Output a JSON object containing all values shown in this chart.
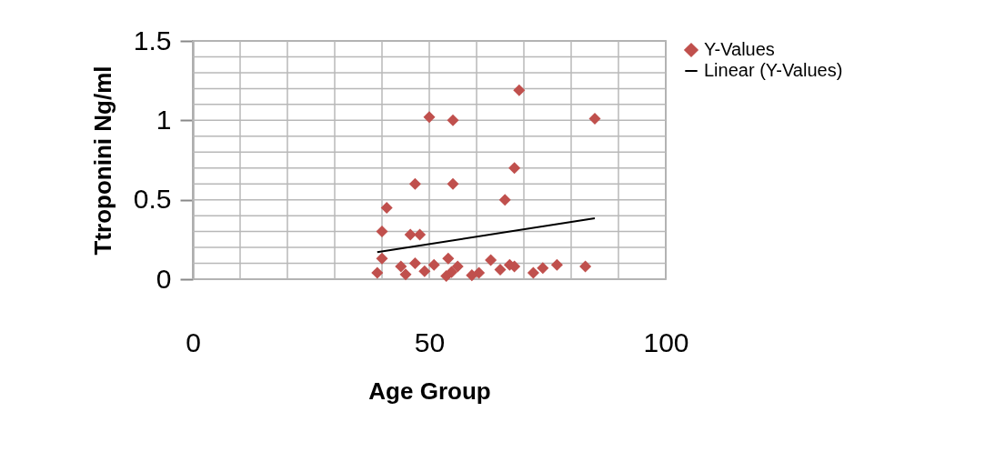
{
  "chart_data": {
    "type": "scatter",
    "xlabel": "Age Group",
    "ylabel": "Ttroponini Ng/ml",
    "xlim": [
      0,
      100
    ],
    "xticks": [
      0,
      50,
      100
    ],
    "ylim": [
      0,
      1.5
    ],
    "yticks": [
      0,
      0.5,
      1,
      1.5
    ],
    "grid": true,
    "legend": "right",
    "marker": "diamond",
    "series": [
      {
        "name": "Y-Values",
        "color": "#c0504d",
        "x": [
          50,
          55,
          69,
          85,
          68,
          47,
          55,
          66,
          41,
          40,
          46,
          48,
          40,
          39,
          44,
          45,
          47,
          49,
          51,
          54,
          54.7,
          56,
          53.6,
          59,
          60.5,
          63,
          65,
          67,
          68,
          72,
          74,
          77,
          83
        ],
        "values": [
          1.02,
          1.0,
          1.19,
          1.01,
          0.7,
          0.6,
          0.6,
          0.5,
          0.45,
          0.3,
          0.28,
          0.28,
          0.13,
          0.04,
          0.08,
          0.03,
          0.1,
          0.05,
          0.09,
          0.13,
          0.045,
          0.08,
          0.02,
          0.025,
          0.04,
          0.12,
          0.06,
          0.09,
          0.08,
          0.04,
          0.07,
          0.09,
          0.08
        ]
      },
      {
        "name": "Linear (Y-Values)",
        "type": "line",
        "color": "#000000",
        "line_style": "solid",
        "marker": "none",
        "x": [
          39,
          85
        ],
        "values": [
          0.17,
          0.384
        ]
      }
    ]
  }
}
